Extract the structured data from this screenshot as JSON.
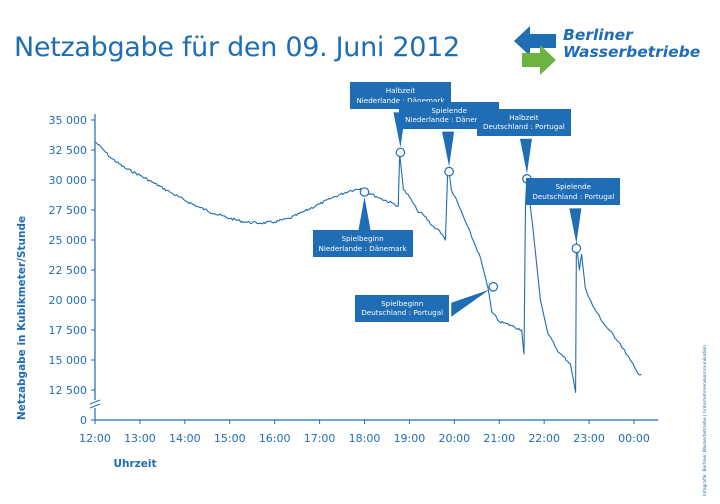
{
  "header": {
    "title": "Netzabgabe für den 09. Juni 2012",
    "logo_icon": "double-arrow-logo-icon",
    "logo_line1": "Berliner",
    "logo_line2": "Wasserbetriebe"
  },
  "side_credit": "Infografik: Berliner Wasserbetriebe | Unternehmenskommunikation",
  "colors": {
    "primary": "#1f6db5",
    "logo_green": "#6db33f",
    "background": "#ffffff"
  },
  "chart_data": {
    "type": "line",
    "title": "Netzabgabe für den 09. Juni 2012",
    "xlabel": "Uhrzeit",
    "ylabel": "Netzabgabe in Kubikmeter/Stunde",
    "x_tick_labels": [
      "12:00",
      "13:00",
      "14:00",
      "15:00",
      "16:00",
      "17:00",
      "18:00",
      "19:00",
      "20:00",
      "21:00",
      "22:00",
      "23:00",
      "00:00"
    ],
    "y_tick_labels": [
      "0",
      "12 500",
      "15 000",
      "17 500",
      "20 000",
      "22 500",
      "25 000",
      "27 500",
      "30 000",
      "32 500",
      "35 000"
    ],
    "ylim": [
      0,
      35000
    ],
    "y_axis_break": true,
    "grid": false,
    "series": [
      {
        "points": [
          [
            "12:00",
            33200
          ],
          [
            "12:10",
            32600
          ],
          [
            "12:20",
            31900
          ],
          [
            "12:40",
            31000
          ],
          [
            "13:00",
            30400
          ],
          [
            "13:20",
            29700
          ],
          [
            "13:40",
            29000
          ],
          [
            "14:00",
            28300
          ],
          [
            "14:20",
            27700
          ],
          [
            "14:40",
            27200
          ],
          [
            "15:00",
            26800
          ],
          [
            "15:20",
            26500
          ],
          [
            "15:40",
            26400
          ],
          [
            "16:00",
            26500
          ],
          [
            "16:20",
            26800
          ],
          [
            "16:40",
            27400
          ],
          [
            "17:00",
            28000
          ],
          [
            "17:20",
            28600
          ],
          [
            "17:40",
            29100
          ],
          [
            "17:55",
            29300
          ],
          [
            "18:00",
            29000
          ],
          [
            "18:10",
            28800
          ],
          [
            "18:20",
            28500
          ],
          [
            "18:40",
            28000
          ],
          [
            "18:45",
            27800
          ],
          [
            "18:47",
            32200
          ],
          [
            "18:52",
            29200
          ],
          [
            "19:00",
            28600
          ],
          [
            "19:10",
            27500
          ],
          [
            "19:20",
            27000
          ],
          [
            "19:30",
            26200
          ],
          [
            "19:40",
            25800
          ],
          [
            "19:48",
            25000
          ],
          [
            "19:51",
            30500
          ],
          [
            "19:53",
            30700
          ],
          [
            "19:56",
            29200
          ],
          [
            "20:05",
            28000
          ],
          [
            "20:15",
            26500
          ],
          [
            "20:25",
            25000
          ],
          [
            "20:35",
            23500
          ],
          [
            "20:45",
            21000
          ],
          [
            "20:50",
            19000
          ],
          [
            "21:00",
            18200
          ],
          [
            "21:15",
            17900
          ],
          [
            "21:30",
            17500
          ],
          [
            "21:33",
            15500
          ],
          [
            "21:35",
            28000
          ],
          [
            "21:37",
            30200
          ],
          [
            "21:45",
            26000
          ],
          [
            "21:55",
            20000
          ],
          [
            "22:05",
            17200
          ],
          [
            "22:20",
            15600
          ],
          [
            "22:35",
            14700
          ],
          [
            "22:40",
            13000
          ],
          [
            "22:42",
            11500
          ],
          [
            "22:43",
            24800
          ],
          [
            "22:47",
            22500
          ],
          [
            "22:50",
            23800
          ],
          [
            "22:55",
            21000
          ],
          [
            "23:05",
            19500
          ],
          [
            "23:20",
            18000
          ],
          [
            "23:40",
            16500
          ],
          [
            "23:55",
            15000
          ],
          [
            "00:05",
            13900
          ],
          [
            "00:10",
            13800
          ]
        ]
      }
    ],
    "annotations": [
      {
        "line1": "Spielbeginn",
        "line2": "Niederlande : Dänemark",
        "x": "18:00",
        "y": 29000,
        "placement": "below"
      },
      {
        "line1": "Halbzeit",
        "line2": "Niederlande : Dänemark",
        "x": "18:48",
        "y": 32300,
        "placement": "above"
      },
      {
        "line1": "Spielende",
        "line2": "Niederlande : Dänemark",
        "x": "19:53",
        "y": 30700,
        "placement": "above"
      },
      {
        "line1": "Spielbeginn",
        "line2": "Deutschland : Portugal",
        "x": "20:52",
        "y": 21100,
        "placement": "below-left"
      },
      {
        "line1": "Halbzeit",
        "line2": "Deutschland : Portugal",
        "x": "21:37",
        "y": 30100,
        "placement": "above"
      },
      {
        "line1": "Spielende",
        "line2": "Deutschland : Portugal",
        "x": "22:43",
        "y": 24300,
        "placement": "above"
      }
    ]
  }
}
